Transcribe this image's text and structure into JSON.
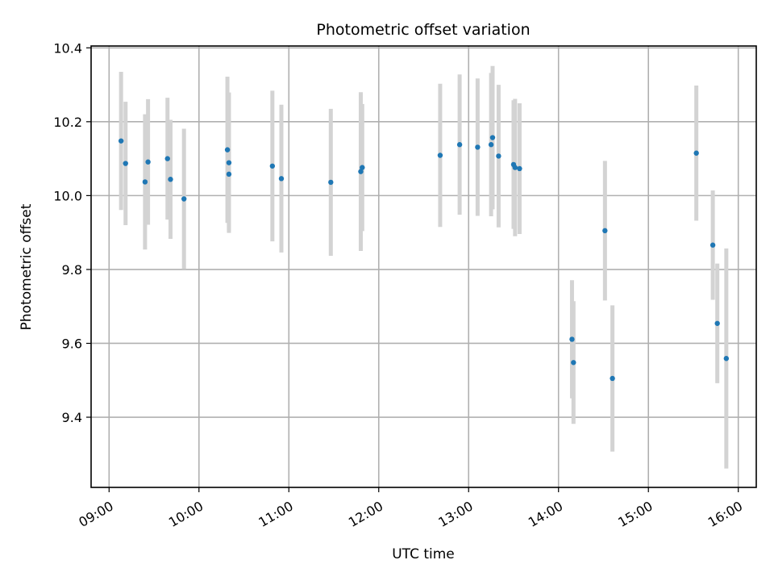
{
  "chart_data": {
    "type": "scatter",
    "title": "Photometric offset variation",
    "xlabel": "UTC time",
    "ylabel": "Photometric offset",
    "xlim": [
      "08:48",
      "16:12"
    ],
    "ylim": [
      9.21,
      10.405
    ],
    "x_ticks": [
      "09:00",
      "10:00",
      "11:00",
      "12:00",
      "13:00",
      "14:00",
      "15:00",
      "16:00"
    ],
    "y_ticks": [
      9.4,
      9.6,
      9.8,
      10.0,
      10.2,
      10.4
    ],
    "y_tick_labels": [
      "9.4",
      "9.6",
      "9.8",
      "10.0",
      "10.2",
      "10.4"
    ],
    "grid": true,
    "point_color": "#1f77b4",
    "errorbar_color": "#d3d3d3",
    "series": [
      {
        "marker": "point",
        "errorbars": "vertical",
        "points": [
          {
            "x": "09:08",
            "y": 10.148,
            "err": 0.187
          },
          {
            "x": "09:11",
            "y": 10.087,
            "err": 0.167
          },
          {
            "x": "09:24",
            "y": 10.037,
            "err": 0.183
          },
          {
            "x": "09:26",
            "y": 10.091,
            "err": 0.17
          },
          {
            "x": "09:39",
            "y": 10.1,
            "err": 0.165
          },
          {
            "x": "09:41",
            "y": 10.044,
            "err": 0.161
          },
          {
            "x": "09:50",
            "y": 9.991,
            "err": 0.19
          },
          {
            "x": "10:19",
            "y": 10.124,
            "err": 0.198
          },
          {
            "x": "10:20",
            "y": 10.058,
            "err": 0.152
          },
          {
            "x": "10:20",
            "y": 10.089,
            "err": 0.19
          },
          {
            "x": "10:49",
            "y": 10.08,
            "err": 0.204
          },
          {
            "x": "10:55",
            "y": 10.046,
            "err": 0.2
          },
          {
            "x": "11:28",
            "y": 10.036,
            "err": 0.199
          },
          {
            "x": "11:48",
            "y": 10.065,
            "err": 0.215
          },
          {
            "x": "11:49",
            "y": 10.076,
            "err": 0.172
          },
          {
            "x": "12:41",
            "y": 10.109,
            "err": 0.194
          },
          {
            "x": "12:54",
            "y": 10.138,
            "err": 0.19
          },
          {
            "x": "13:06",
            "y": 10.131,
            "err": 0.186
          },
          {
            "x": "13:15",
            "y": 10.138,
            "err": 0.194
          },
          {
            "x": "13:16",
            "y": 10.157,
            "err": 0.194
          },
          {
            "x": "13:20",
            "y": 10.107,
            "err": 0.193
          },
          {
            "x": "13:30",
            "y": 10.084,
            "err": 0.174
          },
          {
            "x": "13:31",
            "y": 10.076,
            "err": 0.186
          },
          {
            "x": "13:34",
            "y": 10.073,
            "err": 0.177
          },
          {
            "x": "14:09",
            "y": 9.611,
            "err": 0.16
          },
          {
            "x": "14:10",
            "y": 9.548,
            "err": 0.166
          },
          {
            "x": "14:31",
            "y": 9.905,
            "err": 0.189
          },
          {
            "x": "14:36",
            "y": 9.505,
            "err": 0.198
          },
          {
            "x": "15:32",
            "y": 10.115,
            "err": 0.183
          },
          {
            "x": "15:43",
            "y": 9.866,
            "err": 0.148
          },
          {
            "x": "15:46",
            "y": 9.654,
            "err": 0.162
          },
          {
            "x": "15:52",
            "y": 9.559,
            "err": 0.298
          }
        ]
      }
    ]
  }
}
